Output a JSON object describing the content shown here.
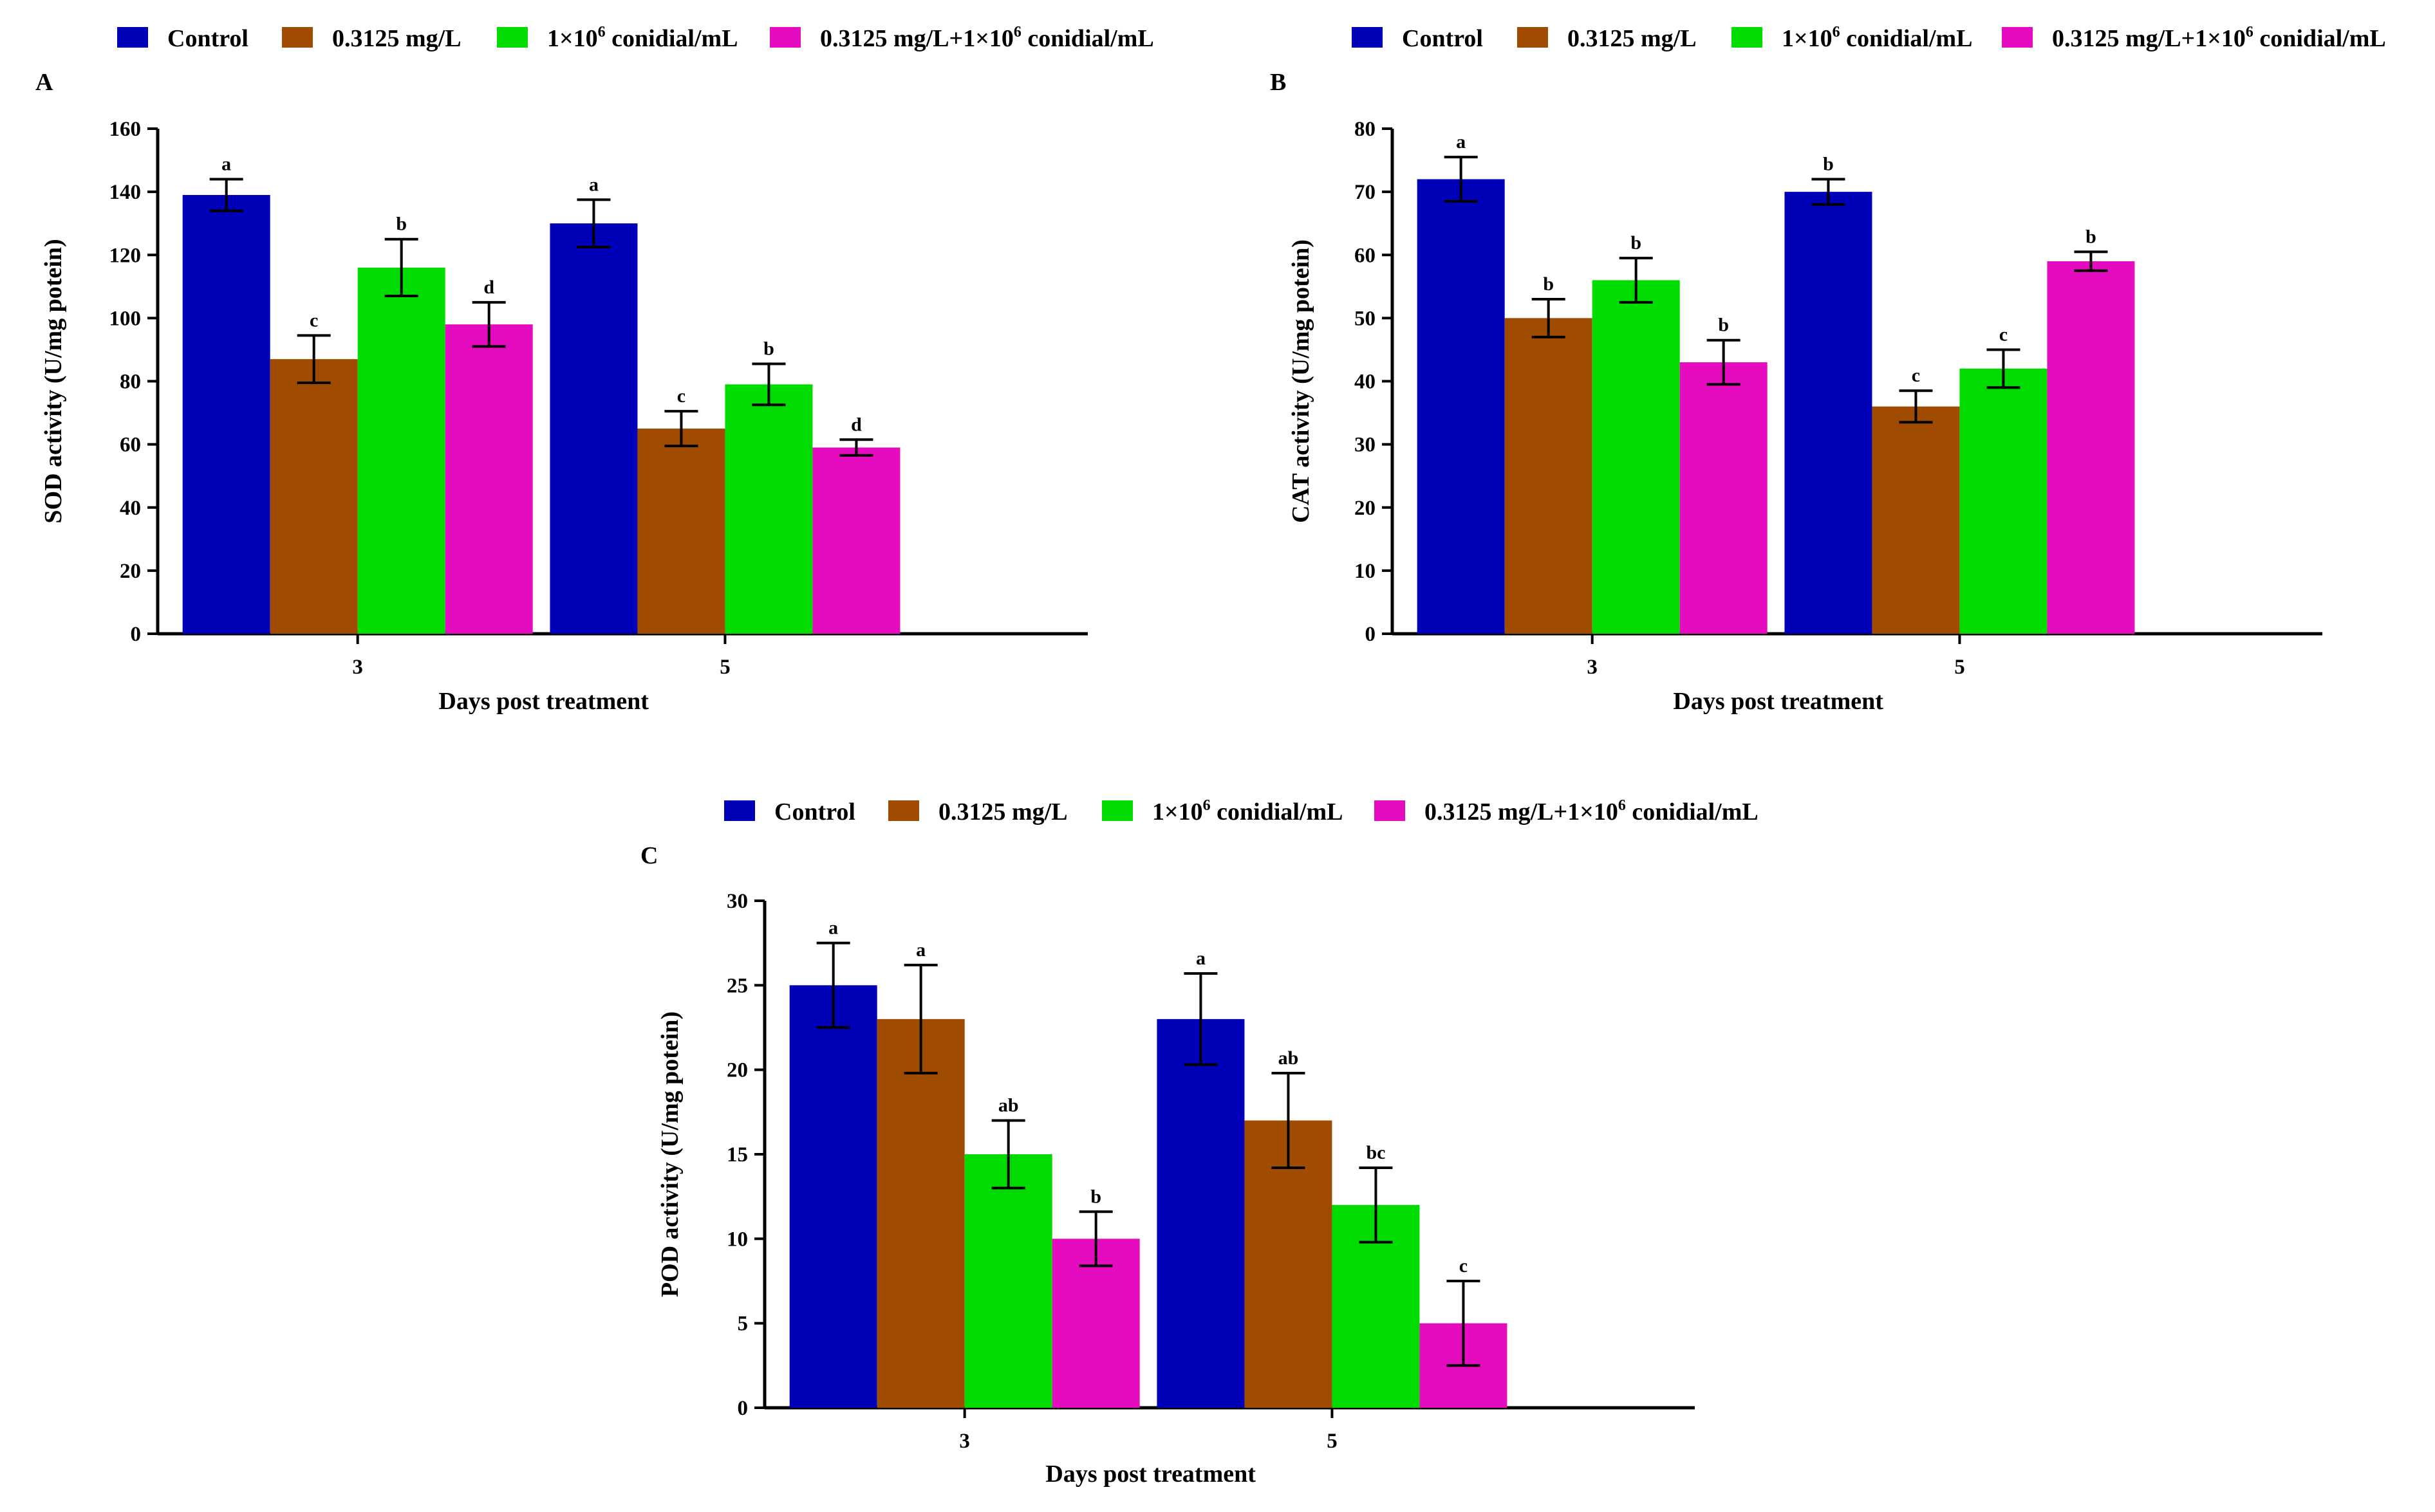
{
  "chart_data": [
    {
      "type": "bar",
      "panel": "A",
      "xlabel": "Days post treatment",
      "ylabel": "SOD activity (U/mg potein)",
      "ylim": [
        0,
        160
      ],
      "yticks": [
        0,
        20,
        40,
        60,
        80,
        100,
        120,
        140,
        160
      ],
      "categories": [
        "3",
        "5"
      ],
      "series": [
        {
          "name": "Control",
          "color": "#0000b8",
          "values": [
            139,
            130
          ],
          "errors": [
            5,
            7.5
          ],
          "letters": [
            "a",
            "a"
          ]
        },
        {
          "name": "0.3125 mg/L",
          "color": "#a04c00",
          "values": [
            87,
            65
          ],
          "errors": [
            7.5,
            5.5
          ],
          "letters": [
            "c",
            "c"
          ]
        },
        {
          "name": "1×10^6 conidial/mL",
          "color": "#00dc00",
          "values": [
            116,
            79
          ],
          "errors": [
            9,
            6.5
          ],
          "letters": [
            "b",
            "b"
          ]
        },
        {
          "name": "0.3125 mg/L+1×10^6 conidial/mL",
          "color": "#e50cc0",
          "values": [
            98,
            59
          ],
          "errors": [
            7,
            2.5
          ],
          "letters": [
            "d",
            "d"
          ]
        }
      ]
    },
    {
      "type": "bar",
      "panel": "B",
      "xlabel": "Days post treatment",
      "ylabel": "CAT activity (U/mg potein)",
      "ylim": [
        0,
        80
      ],
      "yticks": [
        0,
        10,
        20,
        30,
        40,
        50,
        60,
        70,
        80
      ],
      "categories": [
        "3",
        "5"
      ],
      "series": [
        {
          "name": "Control",
          "color": "#0000b8",
          "values": [
            72,
            70
          ],
          "errors": [
            3.5,
            2
          ],
          "letters": [
            "a",
            "b"
          ]
        },
        {
          "name": "0.3125 mg/L",
          "color": "#a04c00",
          "values": [
            50,
            36
          ],
          "errors": [
            3,
            2.5
          ],
          "letters": [
            "b",
            "c"
          ]
        },
        {
          "name": "1×10^6 conidial/mL",
          "color": "#00dc00",
          "values": [
            56,
            42
          ],
          "errors": [
            3.5,
            3
          ],
          "letters": [
            "b",
            "c"
          ]
        },
        {
          "name": "0.3125 mg/L+1×10^6 conidial/mL",
          "color": "#e50cc0",
          "values": [
            43,
            59
          ],
          "errors": [
            3.5,
            1.5
          ],
          "letters": [
            "b",
            "b"
          ]
        }
      ]
    },
    {
      "type": "bar",
      "panel": "C",
      "xlabel": "Days post treatment",
      "ylabel": "POD activity (U/mg potein)",
      "ylim": [
        0,
        30
      ],
      "yticks": [
        0,
        5,
        10,
        15,
        20,
        25,
        30
      ],
      "categories": [
        "3",
        "5"
      ],
      "series": [
        {
          "name": "Control",
          "color": "#0000b8",
          "values": [
            25,
            23
          ],
          "errors": [
            2.5,
            2.7
          ],
          "letters": [
            "a",
            "a"
          ]
        },
        {
          "name": "0.3125 mg/L",
          "color": "#a04c00",
          "values": [
            23,
            17
          ],
          "errors": [
            3.2,
            2.8
          ],
          "letters": [
            "a",
            "ab"
          ]
        },
        {
          "name": "1×10^6 conidial/mL",
          "color": "#00dc00",
          "values": [
            15,
            12
          ],
          "errors": [
            2,
            2.2
          ],
          "letters": [
            "ab",
            "bc"
          ]
        },
        {
          "name": "0.3125 mg/L+1×10^6 conidial/mL",
          "color": "#e50cc0",
          "values": [
            10,
            5
          ],
          "errors": [
            1.6,
            2.5
          ],
          "letters": [
            "b",
            "c"
          ]
        }
      ]
    }
  ],
  "legend": {
    "items": [
      {
        "text": "Control",
        "color": "#0000b8"
      },
      {
        "text": "0.3125 mg/L",
        "color": "#a04c00"
      },
      {
        "text": "1×10",
        "sup": "6",
        "tail": " conidial/mL",
        "color": "#00dc00"
      },
      {
        "text": "0.3125 mg/L+1×10",
        "sup": "6",
        "tail": " conidial/mL",
        "color": "#e50cc0"
      }
    ]
  }
}
